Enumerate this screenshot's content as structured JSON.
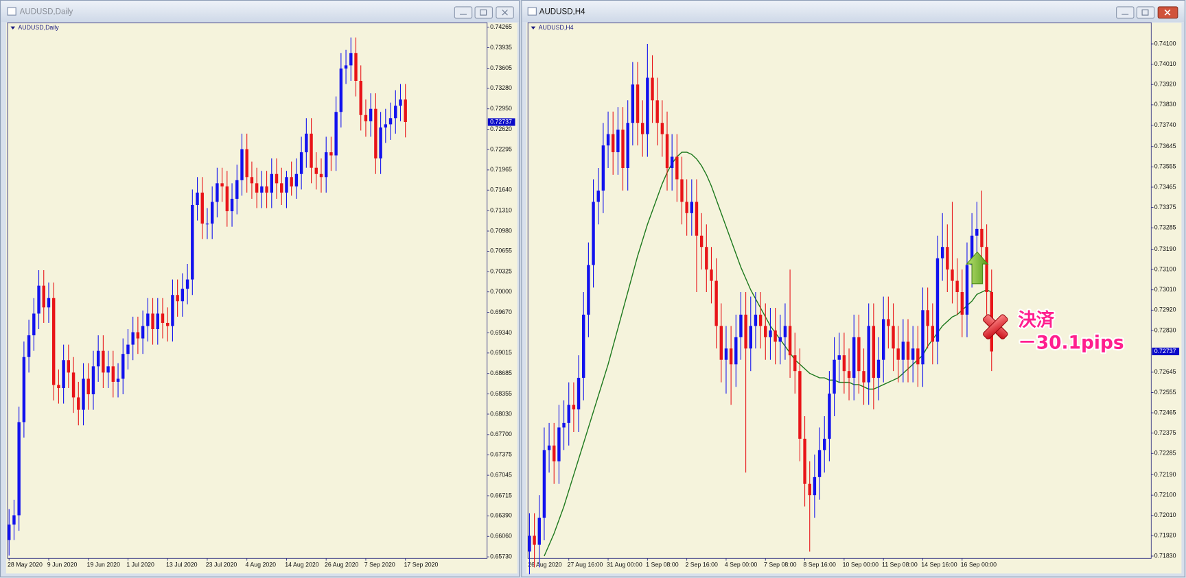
{
  "windows": [
    {
      "title": "AUDUSD,Daily"
    },
    {
      "title": "AUDUSD,H4"
    }
  ],
  "chart_data": [
    {
      "type": "candlestick",
      "title": "AUDUSD,Daily",
      "categories": [
        "28 May 2020",
        null,
        null,
        null,
        null,
        null,
        null,
        null,
        "9 Jun 2020",
        null,
        null,
        null,
        null,
        null,
        null,
        null,
        "19 Jun 2020",
        null,
        null,
        null,
        null,
        null,
        null,
        null,
        "1 Jul 2020",
        null,
        null,
        null,
        null,
        null,
        null,
        null,
        "13 Jul 2020",
        null,
        null,
        null,
        null,
        null,
        null,
        null,
        "23 Jul 2020",
        null,
        null,
        null,
        null,
        null,
        null,
        null,
        "4 Aug 2020",
        null,
        null,
        null,
        null,
        null,
        null,
        null,
        "14 Aug 2020",
        null,
        null,
        null,
        null,
        null,
        null,
        null,
        "26 Aug 2020",
        null,
        null,
        null,
        null,
        null,
        null,
        null,
        "7 Sep 2020",
        null,
        null,
        null,
        null,
        null,
        null,
        null,
        "17 Sep 2020"
      ],
      "open": [
        0.66,
        0.6625,
        0.664,
        0.679,
        0.6895,
        0.693,
        0.6965,
        0.701,
        0.6975,
        0.699,
        0.685,
        0.6845,
        0.689,
        0.687,
        0.683,
        0.681,
        0.686,
        0.6835,
        0.688,
        0.6905,
        0.687,
        0.688,
        0.6855,
        0.686,
        0.69,
        0.6915,
        0.6935,
        0.6925,
        0.6945,
        0.6965,
        0.694,
        0.6965,
        0.695,
        0.6945,
        0.6995,
        0.6985,
        0.7005,
        0.702,
        0.714,
        0.716,
        0.711,
        0.711,
        0.7145,
        0.7175,
        0.717,
        0.713,
        0.715,
        0.718,
        0.723,
        0.7185,
        0.7175,
        0.716,
        0.717,
        0.716,
        0.719,
        0.7175,
        0.716,
        0.7185,
        0.717,
        0.719,
        0.7225,
        0.7255,
        0.72,
        0.719,
        0.7185,
        0.7225,
        0.722,
        0.729,
        0.736,
        0.7365,
        0.7385,
        0.734,
        0.7285,
        0.7275,
        0.7295,
        0.7215,
        0.7265,
        0.727,
        0.728,
        0.73,
        0.731
      ],
      "high": [
        0.665,
        0.6665,
        0.6815,
        0.692,
        0.6955,
        0.699,
        0.7035,
        0.7035,
        0.7015,
        0.7015,
        0.6875,
        0.6915,
        0.6915,
        0.6895,
        0.6855,
        0.6885,
        0.6885,
        0.6905,
        0.693,
        0.693,
        0.6905,
        0.6905,
        0.6885,
        0.6925,
        0.694,
        0.696,
        0.696,
        0.697,
        0.699,
        0.699,
        0.699,
        0.699,
        0.6975,
        0.702,
        0.702,
        0.703,
        0.7045,
        0.7165,
        0.7185,
        0.7185,
        0.7135,
        0.717,
        0.72,
        0.72,
        0.7195,
        0.7175,
        0.7205,
        0.7255,
        0.7255,
        0.721,
        0.72,
        0.7195,
        0.7195,
        0.7215,
        0.7215,
        0.72,
        0.7195,
        0.721,
        0.7215,
        0.725,
        0.728,
        0.728,
        0.7225,
        0.7215,
        0.725,
        0.725,
        0.7315,
        0.7385,
        0.739,
        0.741,
        0.741,
        0.7365,
        0.731,
        0.732,
        0.732,
        0.729,
        0.7295,
        0.7305,
        0.7325,
        0.7335,
        0.7335
      ],
      "low": [
        0.6575,
        0.66,
        0.6615,
        0.6765,
        0.687,
        0.6905,
        0.694,
        0.695,
        0.695,
        0.6825,
        0.682,
        0.682,
        0.6845,
        0.6805,
        0.6785,
        0.6785,
        0.681,
        0.681,
        0.6855,
        0.6845,
        0.6845,
        0.683,
        0.683,
        0.6835,
        0.6875,
        0.689,
        0.69,
        0.69,
        0.692,
        0.6915,
        0.6915,
        0.6925,
        0.692,
        0.692,
        0.696,
        0.696,
        0.698,
        0.6995,
        0.7115,
        0.7085,
        0.7085,
        0.7085,
        0.712,
        0.7145,
        0.7105,
        0.7105,
        0.7125,
        0.7155,
        0.716,
        0.715,
        0.7135,
        0.7135,
        0.7135,
        0.7135,
        0.715,
        0.714,
        0.7135,
        0.7155,
        0.715,
        0.7165,
        0.72,
        0.7175,
        0.7165,
        0.716,
        0.716,
        0.7195,
        0.7195,
        0.7265,
        0.7335,
        0.734,
        0.7315,
        0.726,
        0.725,
        0.725,
        0.719,
        0.719,
        0.724,
        0.7245,
        0.7255,
        0.7275,
        0.7249
      ],
      "close": [
        0.6625,
        0.664,
        0.679,
        0.6895,
        0.693,
        0.6965,
        0.701,
        0.6975,
        0.699,
        0.685,
        0.6845,
        0.689,
        0.687,
        0.683,
        0.681,
        0.686,
        0.6835,
        0.688,
        0.6905,
        0.687,
        0.688,
        0.6855,
        0.686,
        0.69,
        0.6915,
        0.6935,
        0.6925,
        0.6945,
        0.6965,
        0.694,
        0.6965,
        0.695,
        0.6945,
        0.6995,
        0.6985,
        0.7005,
        0.702,
        0.714,
        0.716,
        0.711,
        0.711,
        0.7145,
        0.7175,
        0.717,
        0.713,
        0.715,
        0.718,
        0.723,
        0.7185,
        0.7175,
        0.716,
        0.717,
        0.716,
        0.719,
        0.7175,
        0.716,
        0.7185,
        0.717,
        0.719,
        0.7225,
        0.7255,
        0.72,
        0.719,
        0.7185,
        0.7225,
        0.722,
        0.729,
        0.736,
        0.7365,
        0.7385,
        0.734,
        0.7285,
        0.7275,
        0.7295,
        0.7215,
        0.7265,
        0.727,
        0.728,
        0.73,
        0.731,
        0.72737
      ],
      "up_color": "#1212ee",
      "down_color": "#e81418",
      "ylim": [
        0.65706,
        0.74338
      ],
      "yticks": [
        0.74265,
        0.73935,
        0.73605,
        {
          "value": 0.7328,
          "label": "0.73280"
        },
        {
          "value": 0.7295,
          "label": "0.72950"
        },
        {
          "value": 0.7262,
          "label": "0.72620"
        },
        0.72295,
        0.71965,
        {
          "value": 0.7164,
          "label": "0.71640"
        },
        {
          "value": 0.7131,
          "label": "0.71310"
        },
        {
          "value": 0.7098,
          "label": "0.70980"
        },
        0.70655,
        0.70325,
        {
          "value": 0.7,
          "label": "0.70000"
        },
        {
          "value": 0.6967,
          "label": "0.69670"
        },
        {
          "value": 0.6934,
          "label": "0.69340"
        },
        0.69015,
        0.68685,
        0.68355,
        {
          "value": 0.6803,
          "label": "0.68030"
        },
        {
          "value": 0.677,
          "label": "0.67700"
        },
        0.67375,
        0.67045,
        0.66715,
        {
          "value": 0.6639,
          "label": "0.66390"
        },
        {
          "value": 0.6606,
          "label": "0.66060"
        },
        {
          "value": 0.6573,
          "label": "0.65730"
        }
      ],
      "last_price": 0.72737
    },
    {
      "type": "candlestick",
      "title": "AUDUSD,H4",
      "categories": [
        "26 Aug 2020",
        null,
        null,
        null,
        null,
        null,
        null,
        null,
        "27 Aug 16:00",
        null,
        null,
        null,
        null,
        null,
        null,
        null,
        "31 Aug 00:00",
        null,
        null,
        null,
        null,
        null,
        null,
        null,
        "1 Sep 08:00",
        null,
        null,
        null,
        null,
        null,
        null,
        null,
        "2 Sep 16:00",
        null,
        null,
        null,
        null,
        null,
        null,
        null,
        "4 Sep 00:00",
        null,
        null,
        null,
        null,
        null,
        null,
        null,
        "7 Sep 08:00",
        null,
        null,
        null,
        null,
        null,
        null,
        null,
        "8 Sep 16:00",
        null,
        null,
        null,
        null,
        null,
        null,
        null,
        "10 Sep 00:00",
        null,
        null,
        null,
        null,
        null,
        null,
        null,
        "11 Sep 08:00",
        null,
        null,
        null,
        null,
        null,
        null,
        null,
        "14 Sep 16:00",
        null,
        null,
        null,
        null,
        null,
        null,
        null,
        "16 Sep 00:00",
        null,
        null,
        null,
        null,
        null,
        null
      ],
      "open": [
        0.7185,
        0.7192,
        0.7188,
        0.72,
        0.723,
        0.7232,
        0.7225,
        0.724,
        0.7242,
        0.725,
        0.7248,
        0.7262,
        0.729,
        0.7312,
        0.734,
        0.7345,
        0.7365,
        0.737,
        0.7362,
        0.7372,
        0.7355,
        0.7375,
        0.7392,
        0.7375,
        0.737,
        0.7395,
        0.7385,
        0.7375,
        0.737,
        0.7355,
        0.736,
        0.735,
        0.734,
        0.7335,
        0.734,
        0.7325,
        0.732,
        0.731,
        0.7305,
        0.7285,
        0.727,
        0.7275,
        0.7268,
        0.728,
        0.729,
        0.7275,
        0.7285,
        0.729,
        0.7285,
        0.728,
        0.7283,
        0.7278,
        0.728,
        0.7285,
        0.7272,
        0.7265,
        0.7235,
        0.7215,
        0.721,
        0.7218,
        0.723,
        0.7235,
        0.7255,
        0.727,
        0.7272,
        0.7265,
        0.7262,
        0.728,
        0.7265,
        0.726,
        0.7285,
        0.7262,
        0.727,
        0.7288,
        0.7285,
        0.7275,
        0.727,
        0.7278,
        0.727,
        0.7275,
        0.7268,
        0.7292,
        0.7285,
        0.7278,
        0.7315,
        0.732,
        0.731,
        0.7305,
        0.73,
        0.729,
        0.7312,
        0.7325,
        0.7328,
        0.732,
        0.73
      ],
      "high": [
        0.7202,
        0.7202,
        0.721,
        0.724,
        0.7242,
        0.7242,
        0.725,
        0.7252,
        0.726,
        0.726,
        0.7272,
        0.73,
        0.7322,
        0.735,
        0.7355,
        0.7375,
        0.738,
        0.738,
        0.7382,
        0.7382,
        0.7385,
        0.7402,
        0.7402,
        0.7385,
        0.741,
        0.7405,
        0.7395,
        0.7385,
        0.738,
        0.737,
        0.737,
        0.736,
        0.735,
        0.735,
        0.735,
        0.7335,
        0.733,
        0.732,
        0.7315,
        0.7295,
        0.7285,
        0.7285,
        0.729,
        0.73,
        0.73,
        0.7298,
        0.73,
        0.73,
        0.7295,
        0.7293,
        0.7293,
        0.729,
        0.7295,
        0.731,
        0.7282,
        0.7275,
        0.7245,
        0.7225,
        0.7228,
        0.724,
        0.7245,
        0.7265,
        0.728,
        0.7282,
        0.7282,
        0.7275,
        0.729,
        0.729,
        0.7275,
        0.7295,
        0.7295,
        0.728,
        0.7298,
        0.7298,
        0.7295,
        0.7285,
        0.7288,
        0.7288,
        0.7285,
        0.7285,
        0.7302,
        0.7302,
        0.7295,
        0.7325,
        0.7335,
        0.733,
        0.734,
        0.7315,
        0.731,
        0.7322,
        0.7335,
        0.734,
        0.7345,
        0.733,
        0.731
      ],
      "low": [
        0.7175,
        0.7178,
        0.7178,
        0.719,
        0.722,
        0.7215,
        0.7215,
        0.723,
        0.7232,
        0.7238,
        0.7238,
        0.7252,
        0.728,
        0.7302,
        0.733,
        0.7335,
        0.7355,
        0.7352,
        0.7352,
        0.7345,
        0.7345,
        0.7365,
        0.7365,
        0.736,
        0.736,
        0.7375,
        0.7365,
        0.736,
        0.7345,
        0.7345,
        0.734,
        0.733,
        0.7325,
        0.7325,
        0.73,
        0.731,
        0.73,
        0.7295,
        0.7275,
        0.726,
        0.7255,
        0.725,
        0.7258,
        0.727,
        0.722,
        0.7265,
        0.7275,
        0.7275,
        0.727,
        0.727,
        0.7268,
        0.7268,
        0.727,
        0.7262,
        0.7255,
        0.7225,
        0.7205,
        0.7185,
        0.72,
        0.7208,
        0.722,
        0.7225,
        0.7245,
        0.726,
        0.7255,
        0.7252,
        0.7252,
        0.7255,
        0.725,
        0.725,
        0.7248,
        0.7252,
        0.726,
        0.7275,
        0.7265,
        0.726,
        0.726,
        0.726,
        0.726,
        0.7258,
        0.7258,
        0.7275,
        0.7268,
        0.7268,
        0.7305,
        0.73,
        0.7295,
        0.729,
        0.728,
        0.728,
        0.7302,
        0.7315,
        0.731,
        0.729,
        0.7265
      ],
      "close": [
        0.7192,
        0.7188,
        0.72,
        0.723,
        0.7232,
        0.7225,
        0.724,
        0.7242,
        0.725,
        0.7248,
        0.7262,
        0.729,
        0.7312,
        0.734,
        0.7345,
        0.7365,
        0.737,
        0.7362,
        0.7372,
        0.7355,
        0.7375,
        0.7392,
        0.7375,
        0.737,
        0.7395,
        0.7385,
        0.7375,
        0.737,
        0.7355,
        0.736,
        0.735,
        0.734,
        0.7335,
        0.734,
        0.7325,
        0.732,
        0.731,
        0.7305,
        0.7285,
        0.727,
        0.7275,
        0.7268,
        0.728,
        0.729,
        0.7275,
        0.7285,
        0.729,
        0.7285,
        0.728,
        0.7283,
        0.7278,
        0.728,
        0.7285,
        0.7272,
        0.7265,
        0.7235,
        0.7215,
        0.721,
        0.7218,
        0.723,
        0.7235,
        0.7255,
        0.727,
        0.7272,
        0.7265,
        0.7262,
        0.728,
        0.7265,
        0.726,
        0.7285,
        0.7262,
        0.727,
        0.7288,
        0.7285,
        0.7275,
        0.727,
        0.7278,
        0.727,
        0.7275,
        0.7268,
        0.7292,
        0.7285,
        0.7278,
        0.7315,
        0.732,
        0.731,
        0.7305,
        0.73,
        0.729,
        0.7312,
        0.7325,
        0.7328,
        0.732,
        0.73,
        0.72737
      ],
      "overlay": {
        "color": "#1f7a1f",
        "values": [
          null,
          null,
          null,
          0.7183,
          0.7188,
          0.7193,
          0.7199,
          0.7205,
          0.7212,
          0.7219,
          0.7226,
          0.7233,
          0.724,
          0.7247,
          0.7254,
          0.7261,
          0.7268,
          0.7276,
          0.7284,
          0.7292,
          0.73,
          0.7308,
          0.7316,
          0.7323,
          0.733,
          0.7336,
          0.7342,
          0.7348,
          0.7353,
          0.7357,
          0.736,
          0.7362,
          0.7362,
          0.7361,
          0.7359,
          0.7356,
          0.7352,
          0.7347,
          0.7341,
          0.7335,
          0.7329,
          0.7323,
          0.7317,
          0.7311,
          0.7306,
          0.7301,
          0.7297,
          0.7293,
          0.7289,
          0.7285,
          0.7282,
          0.7279,
          0.7276,
          0.7273,
          0.727,
          0.7268,
          0.7266,
          0.7264,
          0.7263,
          0.7262,
          0.7262,
          0.7261,
          0.7261,
          0.726,
          0.726,
          0.726,
          0.7259,
          0.7259,
          0.7258,
          0.7257,
          0.7257,
          0.7258,
          0.7259,
          0.726,
          0.7261,
          0.7262,
          0.7264,
          0.7266,
          0.7268,
          0.727,
          0.7272,
          0.7276,
          0.7279,
          0.7282,
          0.7285,
          0.7287,
          0.7289,
          0.729,
          0.7292,
          0.7294,
          0.7296,
          0.7299,
          0.73,
          0.7301,
          0.73
        ]
      },
      "up_color": "#1212ee",
      "down_color": "#e81418",
      "ylim": [
        0.7182,
        0.74194
      ],
      "yticks": [
        {
          "value": 0.741,
          "label": "0.74100"
        },
        {
          "value": 0.7401,
          "label": "0.74010"
        },
        {
          "value": 0.7392,
          "label": "0.73920"
        },
        {
          "value": 0.7383,
          "label": "0.73830"
        },
        {
          "value": 0.7374,
          "label": "0.73740"
        },
        0.73645,
        0.73555,
        0.73465,
        0.73375,
        0.73285,
        {
          "value": 0.7319,
          "label": "0.73190"
        },
        {
          "value": 0.731,
          "label": "0.73100"
        },
        {
          "value": 0.7301,
          "label": "0.73010"
        },
        {
          "value": 0.7292,
          "label": "0.72920"
        },
        {
          "value": 0.7283,
          "label": "0.72830"
        },
        0.72645,
        0.72555,
        0.72465,
        0.72375,
        0.72285,
        {
          "value": 0.7219,
          "label": "0.72190"
        },
        {
          "value": 0.721,
          "label": "0.72100"
        },
        {
          "value": 0.7201,
          "label": "0.72010"
        },
        {
          "value": 0.7192,
          "label": "0.71920"
        },
        {
          "value": 0.7183,
          "label": "0.71830"
        }
      ],
      "last_price": 0.72737,
      "annotations": [
        "決済",
        "－30.1pips"
      ]
    }
  ]
}
